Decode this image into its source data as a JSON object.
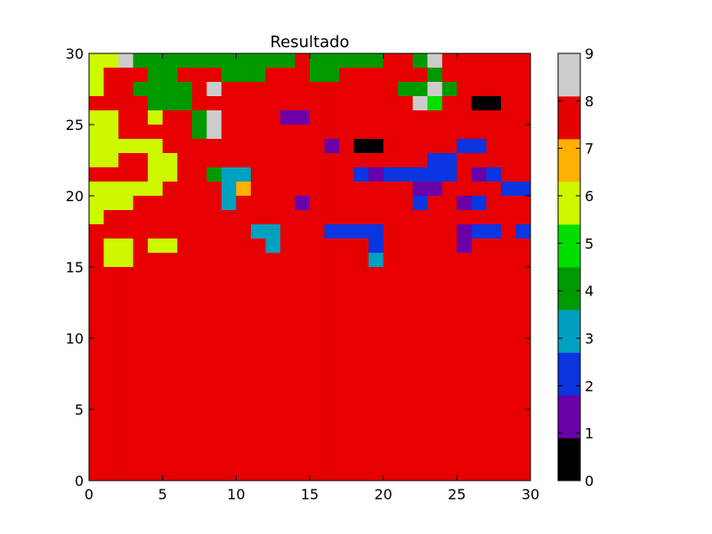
{
  "chart_data": {
    "type": "heatmap",
    "title": "Resultado",
    "xlim": [
      0,
      30
    ],
    "ylim": [
      0,
      30
    ],
    "x_ticks": [
      0,
      5,
      10,
      15,
      20,
      25,
      30
    ],
    "y_ticks": [
      0,
      5,
      10,
      15,
      20,
      25,
      30
    ],
    "colorbar": {
      "min": 0,
      "max": 9,
      "ticks": [
        0,
        1,
        2,
        3,
        4,
        5,
        6,
        7,
        8,
        9
      ],
      "colors": [
        "#000000",
        "#6a00a8",
        "#0a35e0",
        "#00a0c0",
        "#009900",
        "#00e000",
        "#ccf800",
        "#ffb000",
        "#e60000",
        "#cccccc"
      ]
    },
    "rows_top_to_bottom": [
      "669444444444448444448849888888",
      "688844888444888448888884888888",
      "688444489888888888888449488888",
      "888844488888888888888895880088",
      "668868849888811888888888888888",
      "668888849888888888888888888888",
      "666668888888888818008888822888",
      "668866888888888888888882288888",
      "888866884338888888212222281288",
      "666668888378888888888811888822",
      "666888888388881888888828812888",
      "688888888888888888888888888888",
      "888888888883388822228888812282",
      "866866888888388888828888818888",
      "866888888888888888838888888888",
      "888888888888888888888888888888",
      "888888888888888888888888888888",
      "888888888888888888888888888888",
      "888888888888888888888888888888",
      "888888888888888888888888888888",
      "888888888888888888888888888888",
      "888888888888888888888888888888",
      "888888888888888888888888888888",
      "888888888888888888888888888888",
      "888888888888888888888888888888",
      "888888888888888888888888888888",
      "888888888888888888888888888888",
      "888888888888888888888888888888",
      "888888888888888888888888888888",
      "888888888888888888888888888888"
    ]
  }
}
